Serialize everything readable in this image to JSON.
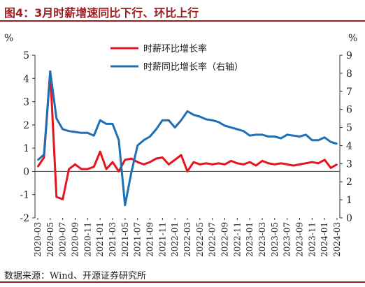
{
  "title": "图4：3月时薪增速同比下行、环比上行",
  "source": "数据来源：Wind、开源证券研究所",
  "colors": {
    "mom": "#e8131c",
    "yoy": "#1f6fb5",
    "title": "#9a1f23"
  },
  "chart_data": {
    "type": "line",
    "left_axis": {
      "unit": "%",
      "min": -2,
      "max": 5,
      "ticks": [
        -2,
        -1,
        0,
        1,
        2,
        3,
        4,
        5
      ],
      "tick_labels": [
        "-2",
        "-1",
        "0",
        "1",
        "2",
        "3",
        "4",
        "5"
      ]
    },
    "right_axis": {
      "unit": "%",
      "min": 0,
      "max": 9,
      "ticks": [
        0,
        1,
        2,
        3,
        4,
        5,
        6,
        7,
        8,
        9
      ],
      "tick_labels": [
        "0",
        "1",
        "2",
        "3",
        "4",
        "5",
        "6",
        "7",
        "8",
        "9"
      ]
    },
    "x_tick_labels": [
      "2020-03",
      "2020-05",
      "2020-07",
      "2020-09",
      "2020-11",
      "2021-01",
      "2021-03",
      "2021-05",
      "2021-07",
      "2021-09",
      "2021-11",
      "2022-01",
      "2022-03",
      "2022-05",
      "2022-07",
      "2022-09",
      "2022-11",
      "2023-01",
      "2023-03",
      "2023-05",
      "2023-07",
      "2023-09",
      "2023-11",
      "2024-01",
      "2024-03"
    ],
    "x": [
      "2020-03",
      "2020-04",
      "2020-05",
      "2020-06",
      "2020-07",
      "2020-08",
      "2020-09",
      "2020-10",
      "2020-11",
      "2020-12",
      "2021-01",
      "2021-02",
      "2021-03",
      "2021-04",
      "2021-05",
      "2021-06",
      "2021-07",
      "2021-08",
      "2021-09",
      "2021-10",
      "2021-11",
      "2021-12",
      "2022-01",
      "2022-02",
      "2022-03",
      "2022-04",
      "2022-05",
      "2022-06",
      "2022-07",
      "2022-08",
      "2022-09",
      "2022-10",
      "2022-11",
      "2022-12",
      "2023-01",
      "2023-02",
      "2023-03",
      "2023-04",
      "2023-05",
      "2023-06",
      "2023-07",
      "2023-08",
      "2023-09",
      "2023-10",
      "2023-11",
      "2023-12",
      "2024-01",
      "2024-02",
      "2024-03"
    ],
    "series": [
      {
        "name": "时薪环比增长率",
        "axis": "left",
        "color": "#e8131c",
        "values": [
          0.2,
          0.6,
          4.3,
          -1.1,
          -1.2,
          0.1,
          0.3,
          0.1,
          0.1,
          0.2,
          0.85,
          0.1,
          0.4,
          0.0,
          0.5,
          0.55,
          0.4,
          0.3,
          0.4,
          0.55,
          0.6,
          0.3,
          0.5,
          0.7,
          0.0,
          0.4,
          0.3,
          0.35,
          0.3,
          0.35,
          0.3,
          0.45,
          0.35,
          0.3,
          0.4,
          0.25,
          0.45,
          0.35,
          0.3,
          0.35,
          0.3,
          0.25,
          0.3,
          0.35,
          0.4,
          0.35,
          0.5,
          0.15,
          0.3
        ]
      },
      {
        "name": "时薪同比增长率（右轴）",
        "axis": "right",
        "color": "#1f6fb5",
        "values": [
          3.2,
          3.5,
          8.1,
          5.5,
          4.9,
          4.8,
          4.75,
          4.7,
          4.7,
          4.55,
          5.4,
          5.2,
          5.2,
          4.3,
          0.7,
          2.5,
          4.0,
          4.3,
          4.5,
          4.9,
          5.4,
          5.4,
          5.0,
          5.4,
          5.9,
          5.7,
          5.6,
          5.45,
          5.4,
          5.3,
          5.1,
          5.0,
          4.9,
          4.8,
          4.55,
          4.6,
          4.6,
          4.5,
          4.5,
          4.4,
          4.6,
          4.55,
          4.5,
          4.6,
          4.3,
          4.3,
          4.45,
          4.2,
          4.1
        ]
      }
    ],
    "legend_position": "top-center",
    "grid": false
  }
}
